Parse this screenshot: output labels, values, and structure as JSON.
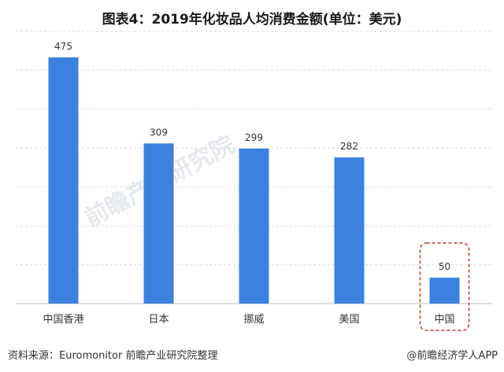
{
  "title": "图表4：2019年化妆品人均消费金额(单位：美元)",
  "source_text": "资料来源：Euromonitor 前瞻产业研究院整理",
  "brand_text": "@前瞻经济学人APP",
  "colors": {
    "bar": "#3b82e0",
    "grid": "#d9d9d9",
    "highlight": "#c0392b"
  },
  "highlighted_category": "中国",
  "chart_data": {
    "type": "bar",
    "title": "图表4：2019年化妆品人均消费金额(单位：美元)",
    "xlabel": "",
    "ylabel": "",
    "categories": [
      "中国香港",
      "日本",
      "挪威",
      "美国",
      "中国"
    ],
    "values": [
      475,
      309,
      299,
      282,
      50
    ],
    "ylim": [
      0,
      525
    ],
    "grid": true,
    "legend": "none"
  }
}
